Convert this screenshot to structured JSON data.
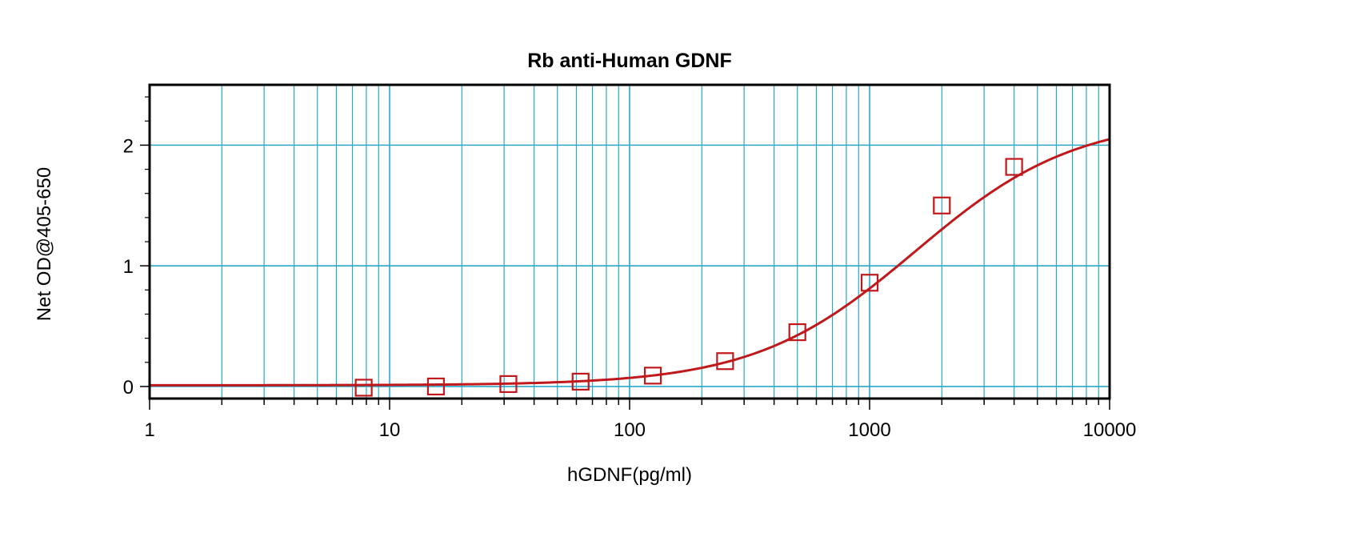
{
  "chart_data": {
    "type": "scatter",
    "title": "Rb anti-Human GDNF",
    "xlabel": "hGDNF(pg/ml)",
    "ylabel": "Net OD@405-650",
    "x_scale": "log",
    "xlim": [
      1,
      10000
    ],
    "ylim": [
      -0.1,
      2.5
    ],
    "x_ticks": [
      1,
      10,
      100,
      1000,
      10000
    ],
    "x_tick_labels": [
      "1",
      "10",
      "100",
      "1000",
      "10000"
    ],
    "y_ticks": [
      0,
      1,
      2
    ],
    "y_tick_labels": [
      "0",
      "1",
      "2"
    ],
    "grid": true,
    "colors": {
      "grid": "#2aa7c9",
      "series": "#c0181b",
      "frame": "#000000"
    },
    "series": [
      {
        "marker": "square",
        "x": [
          7.8,
          15.6,
          31.25,
          62.5,
          125,
          250,
          500,
          1000,
          2000,
          4000
        ],
        "y": [
          -0.01,
          0.0,
          0.02,
          0.04,
          0.09,
          0.21,
          0.45,
          0.86,
          1.5,
          1.82
        ]
      },
      {
        "type": "line",
        "fit": "4PL",
        "params": {
          "bottom": 0.01,
          "top": 2.23,
          "ec50": 1550,
          "hill": 1.3
        }
      }
    ]
  }
}
